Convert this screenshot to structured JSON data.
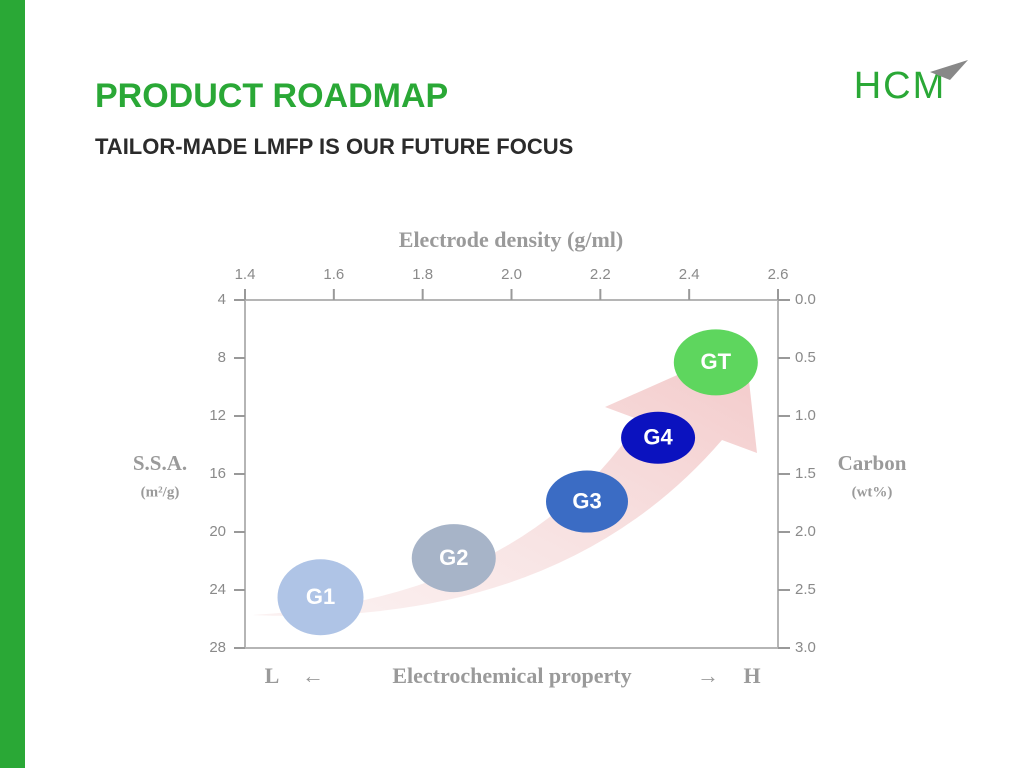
{
  "header": {
    "title": "PRODUCT ROADMAP",
    "subtitle": "TAILOR-MADE LMFP IS OUR FUTURE FOCUS",
    "logo": "HCM"
  },
  "chart_data": {
    "type": "scatter",
    "x_label": "Electrode density (g/ml)",
    "y_label": [
      "S.S.A.",
      "(m²/g)"
    ],
    "y2_label": [
      "Carbon",
      "(wt%)"
    ],
    "bottom_label": [
      "L",
      "←",
      "Electrochemical property",
      "→",
      "H"
    ],
    "x": [
      1.57,
      1.87,
      2.17,
      2.33,
      2.46
    ],
    "values": [
      24.5,
      21.8,
      17.9,
      13.5,
      8.3
    ],
    "labels": [
      "G1",
      "G2",
      "G3",
      "G4",
      "GT"
    ],
    "colors": [
      "#afc4e6",
      "#a7b4c8",
      "#3b6cc4",
      "#0b12bf",
      "#5ed65e"
    ],
    "xlim": [
      1.4,
      2.6
    ],
    "xticks": [
      1.4,
      1.6,
      1.8,
      {
        "value": 2,
        "label": "2.0"
      },
      2.2,
      2.4,
      2.6
    ],
    "ylim": [
      28,
      4
    ],
    "yticks": [
      4,
      8,
      12,
      16,
      20,
      24,
      28
    ],
    "y2lim": [
      3,
      0
    ],
    "y2ticks": [
      {
        "value": 0,
        "label": "0.0"
      },
      0.5,
      {
        "value": 1,
        "label": "1.0"
      },
      1.5,
      {
        "value": 2,
        "label": "2.0"
      },
      2.5,
      {
        "value": 3,
        "label": "3.0"
      }
    ]
  }
}
